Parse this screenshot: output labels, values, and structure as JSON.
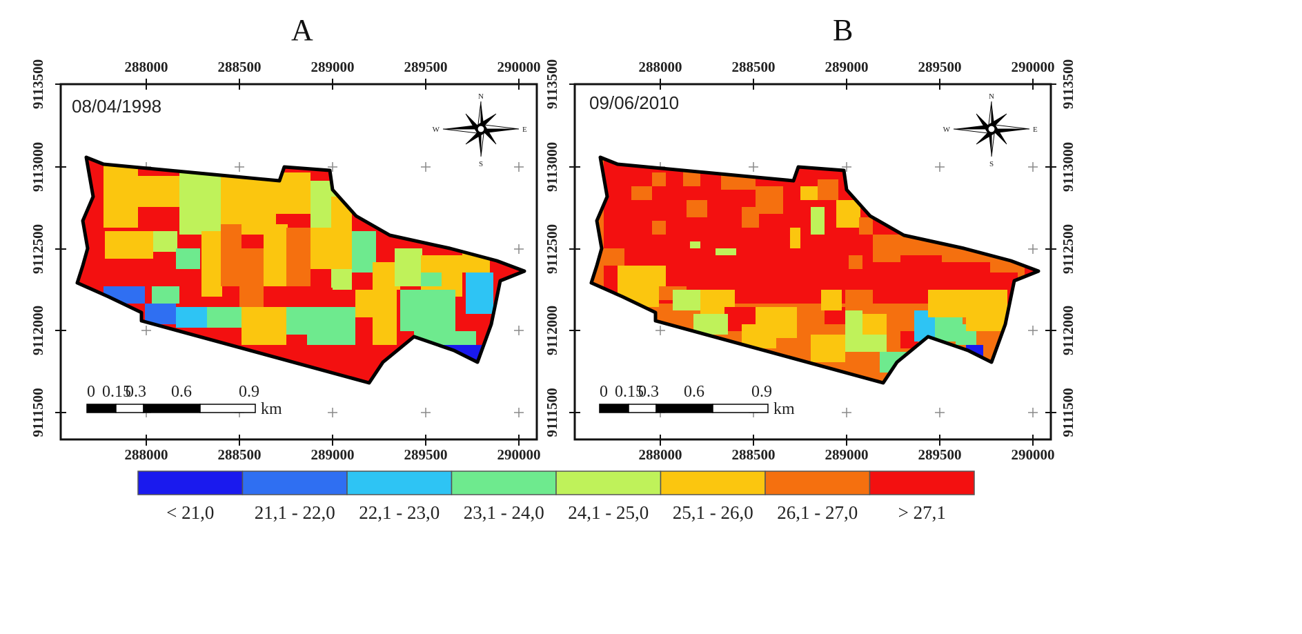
{
  "panels": [
    {
      "letter": "A",
      "date": "08/04/1998",
      "raster_classes": [
        "23,1 - 24,0",
        "24,1 - 25,0",
        "25,1 - 26,0",
        "26,1 - 27,0",
        "> 27,1",
        "21,1 - 22,0",
        "22,1 - 23,0",
        "< 21,0"
      ]
    },
    {
      "letter": "B",
      "date": "09/06/2010",
      "raster_classes": [
        "> 27,1",
        "26,1 - 27,0",
        "25,1 - 26,0",
        "24,1 - 25,0",
        "23,1 - 24,0",
        "22,1 - 23,0",
        "21,1 - 22,0",
        "< 21,0"
      ]
    }
  ],
  "x_ticks": [
    "288000",
    "288500",
    "289000",
    "289500",
    "290000"
  ],
  "y_ticks": [
    "9113500",
    "9113000",
    "9112500",
    "9112000",
    "9111500"
  ],
  "compass": {
    "n": "N",
    "s": "S",
    "e": "E",
    "w": "W"
  },
  "scale_bar": {
    "labels": [
      "0",
      "0.15",
      "0.3",
      "0.6",
      "0.9"
    ],
    "unit": "km"
  },
  "legend": [
    {
      "label": "< 21,0",
      "color": "#1a1aee"
    },
    {
      "label": "21,1 - 22,0",
      "color": "#2f6ff2"
    },
    {
      "label": "22,1 - 23,0",
      "color": "#2ec4f4"
    },
    {
      "label": "23,1 - 24,0",
      "color": "#6eea8e"
    },
    {
      "label": "24,1 - 25,0",
      "color": "#bff25a"
    },
    {
      "label": "25,1 - 26,0",
      "color": "#fbc60f"
    },
    {
      "label": "26,1 - 27,0",
      "color": "#f5700f"
    },
    {
      "label": "> 27,1",
      "color": "#f31010"
    }
  ]
}
